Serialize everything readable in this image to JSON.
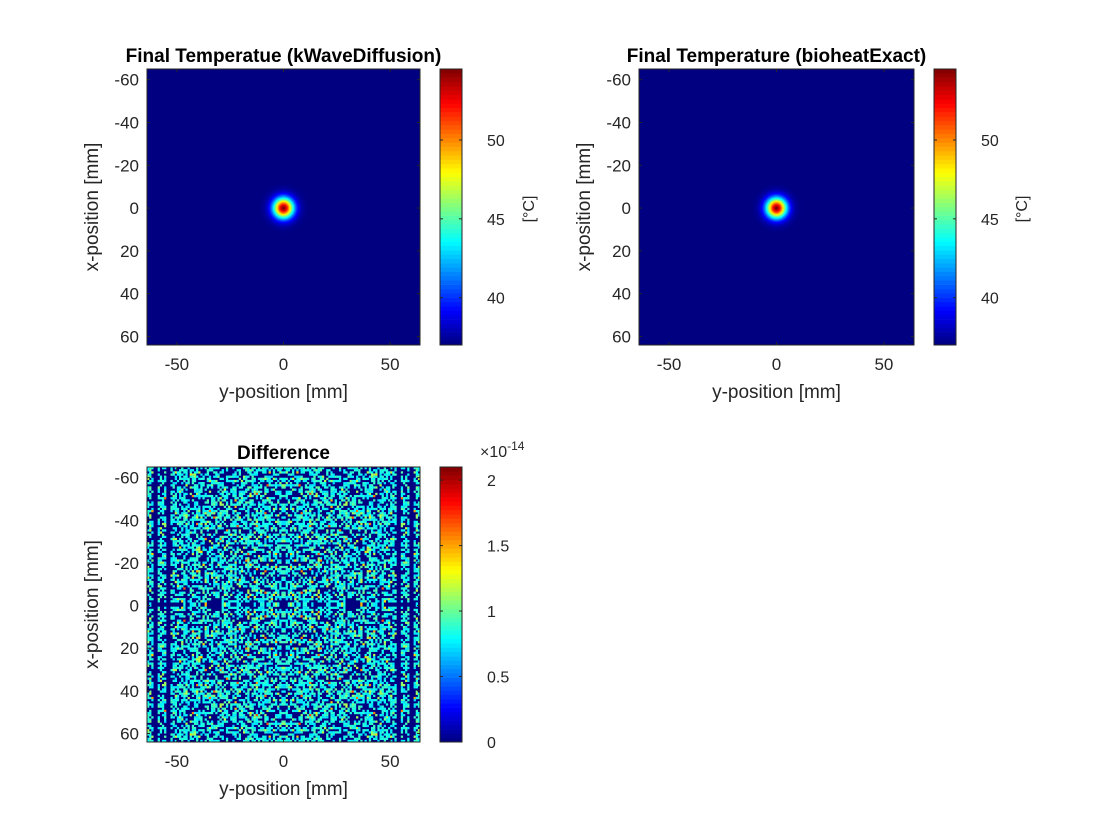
{
  "figure": {
    "background": "#ffffff"
  },
  "chart_data": [
    {
      "type": "heatmap",
      "title": "Final Temperatue (kWaveDiffusion)",
      "xlabel": "y-position [mm]",
      "ylabel": "x-position [mm]",
      "xlim": [
        -64,
        64
      ],
      "ylim": [
        -65,
        64
      ],
      "y_reversed": true,
      "xticks": [
        -50,
        0,
        50
      ],
      "yticks": [
        -60,
        -40,
        -20,
        0,
        20,
        40,
        60
      ],
      "colormap": "jet",
      "clim": [
        37,
        54.5
      ],
      "background_value": 37,
      "hotspot": {
        "center": [
          0,
          0
        ],
        "peak": 54.5,
        "sigma_mm": 4
      },
      "colorbar": {
        "ticks": [
          40,
          45,
          50
        ],
        "label": "[°C]"
      }
    },
    {
      "type": "heatmap",
      "title": "Final Temperature (bioheatExact)",
      "xlabel": "y-position [mm]",
      "ylabel": "x-position [mm]",
      "xlim": [
        -64,
        64
      ],
      "ylim": [
        -65,
        64
      ],
      "y_reversed": true,
      "xticks": [
        -50,
        0,
        50
      ],
      "yticks": [
        -60,
        -40,
        -20,
        0,
        20,
        40,
        60
      ],
      "colormap": "jet",
      "clim": [
        37,
        54.5
      ],
      "background_value": 37,
      "hotspot": {
        "center": [
          0,
          0
        ],
        "peak": 54.5,
        "sigma_mm": 4
      },
      "colorbar": {
        "ticks": [
          40,
          45,
          50
        ],
        "label": "[°C]"
      }
    },
    {
      "type": "heatmap",
      "title": "Difference",
      "xlabel": "y-position [mm]",
      "ylabel": "x-position [mm]",
      "xlim": [
        -64,
        64
      ],
      "ylim": [
        -65,
        64
      ],
      "y_reversed": true,
      "xticks": [
        -50,
        0,
        50
      ],
      "yticks": [
        -60,
        -40,
        -20,
        0,
        20,
        40,
        60
      ],
      "colormap": "jet",
      "clim": [
        0,
        2.1
      ],
      "scale_exponent": "×10",
      "scale_power": "-14",
      "pattern": "symmetric noise, values mostly 0 to 1.1e-14, occasional peaks ~1.5e-14",
      "grid_cells": 128,
      "colorbar": {
        "ticks": [
          0,
          0.5,
          1,
          1.5,
          2
        ],
        "tick_labels": [
          "0",
          "0.5",
          "1",
          "1.5",
          "2"
        ]
      }
    }
  ]
}
